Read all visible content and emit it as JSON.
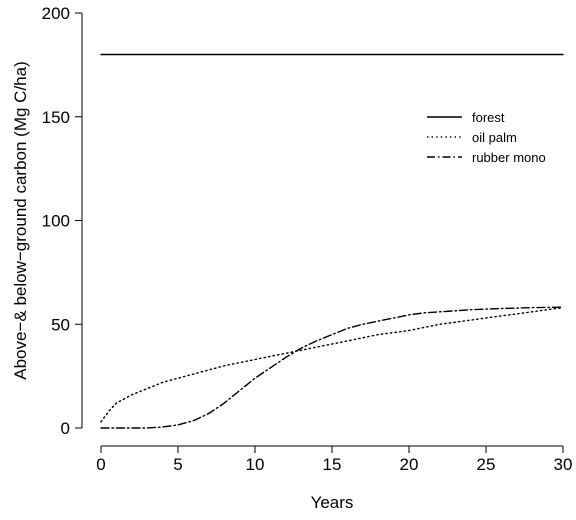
{
  "chart_data": {
    "type": "line",
    "title": "",
    "xlabel": "Years",
    "ylabel": "Above−& below−ground carbon (Mg C/ha)",
    "xlim": [
      0,
      30
    ],
    "ylim": [
      0,
      200
    ],
    "x_ticks": [
      0,
      5,
      10,
      15,
      20,
      25,
      30
    ],
    "y_ticks": [
      0,
      50,
      100,
      150,
      200
    ],
    "grid": false,
    "legend_position": "top-right",
    "series": [
      {
        "name": "forest",
        "line_style": "solid",
        "color": "#000000",
        "x": [
          0,
          30
        ],
        "y": [
          180,
          180
        ]
      },
      {
        "name": "oil palm",
        "line_style": "dotted",
        "color": "#000000",
        "x": [
          0,
          0.5,
          1,
          2,
          3,
          4,
          5,
          6,
          8,
          10,
          12,
          14,
          16,
          18,
          20,
          22,
          24,
          26,
          28,
          30
        ],
        "y": [
          3,
          8,
          12,
          16,
          19,
          22,
          24,
          26,
          30,
          33,
          36,
          39,
          42,
          45,
          47,
          50,
          52,
          54,
          56,
          58
        ]
      },
      {
        "name": "rubber mono",
        "line_style": "dashdot",
        "color": "#000000",
        "x": [
          0,
          1,
          2,
          3,
          4,
          5,
          6,
          7,
          8,
          9,
          10,
          11,
          12,
          13,
          14,
          15,
          16,
          17,
          18,
          19,
          20,
          21,
          22,
          23,
          24,
          25,
          26,
          27,
          28,
          29,
          30
        ],
        "y": [
          0,
          0,
          0,
          0,
          0.5,
          1.5,
          3.5,
          7,
          12,
          18,
          24,
          29,
          34,
          38.5,
          42,
          45,
          48,
          50,
          51.5,
          53,
          54.5,
          55.5,
          56,
          56.5,
          57,
          57.3,
          57.6,
          57.8,
          58,
          58.1,
          58.2
        ]
      }
    ]
  }
}
